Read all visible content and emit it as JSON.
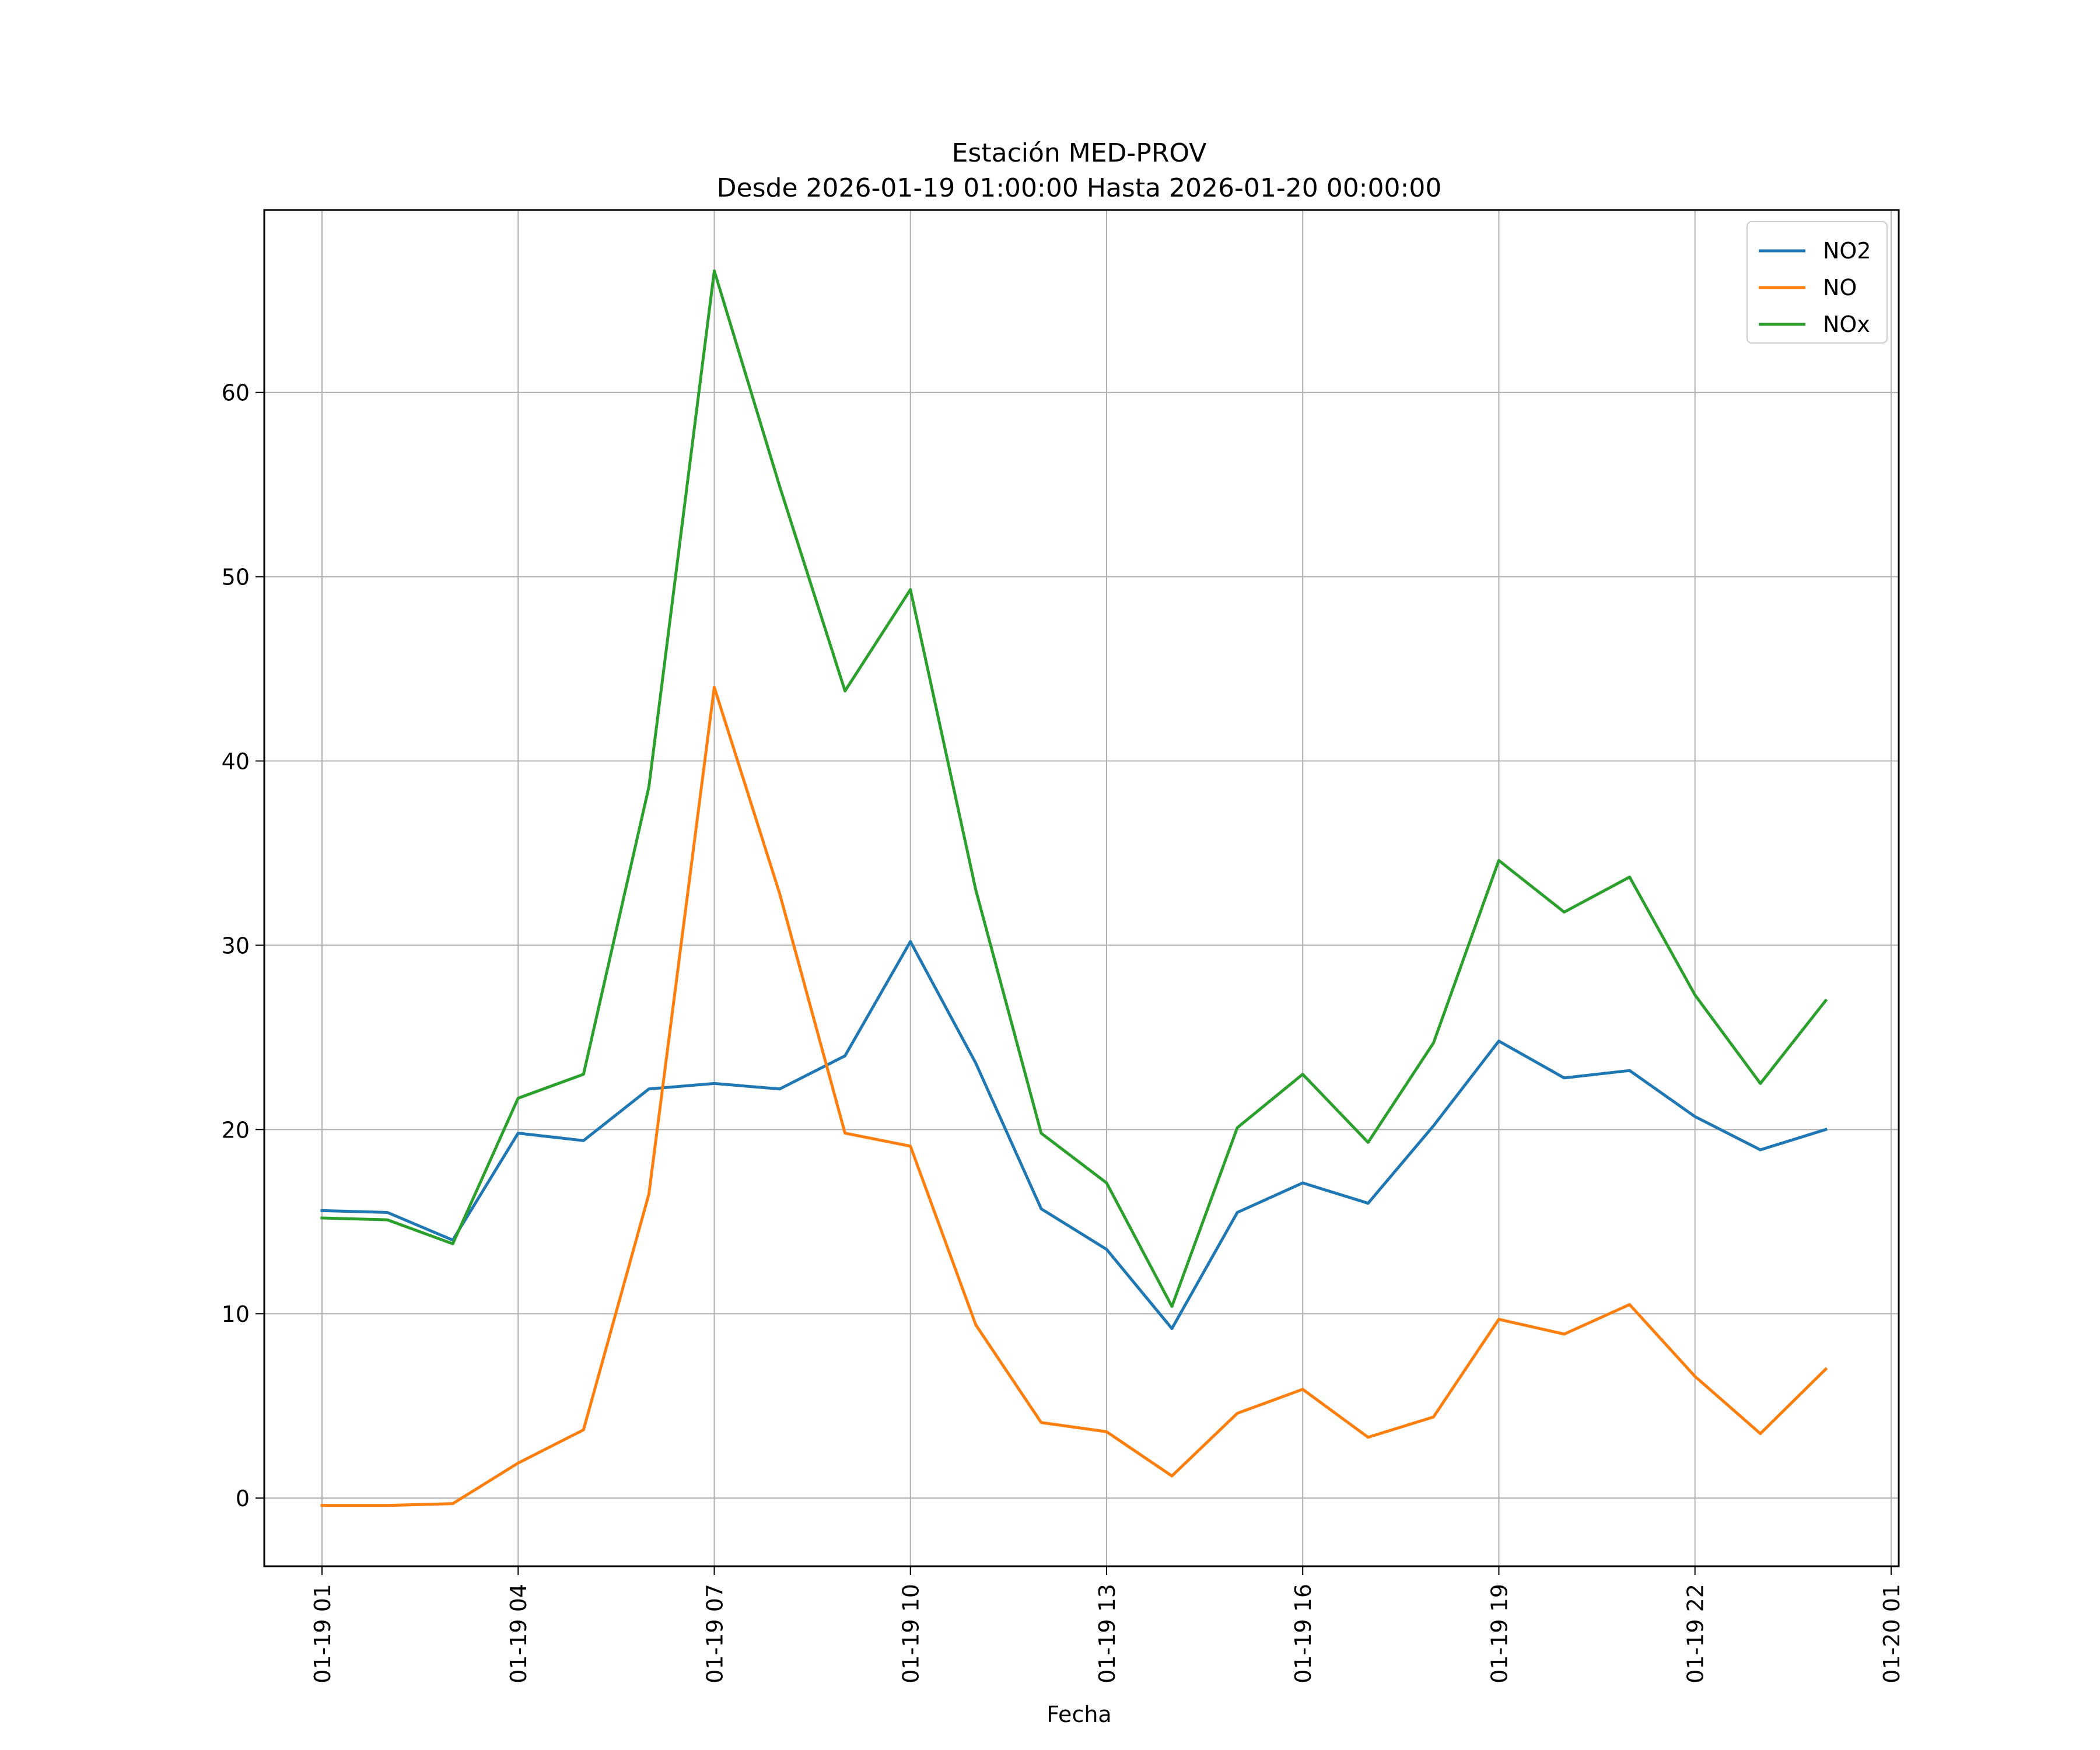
{
  "chart_data": {
    "type": "line",
    "title": "Estación MED-PROV",
    "subtitle": "Desde 2026-01-19 01:00:00 Hasta 2026-01-20 00:00:00",
    "xlabel": "Fecha",
    "ylabel": "",
    "x": [
      "2026-01-19 01:00",
      "2026-01-19 02:00",
      "2026-01-19 03:00",
      "2026-01-19 04:00",
      "2026-01-19 05:00",
      "2026-01-19 06:00",
      "2026-01-19 07:00",
      "2026-01-19 08:00",
      "2026-01-19 09:00",
      "2026-01-19 10:00",
      "2026-01-19 11:00",
      "2026-01-19 12:00",
      "2026-01-19 13:00",
      "2026-01-19 14:00",
      "2026-01-19 15:00",
      "2026-01-19 16:00",
      "2026-01-19 17:00",
      "2026-01-19 18:00",
      "2026-01-19 19:00",
      "2026-01-19 20:00",
      "2026-01-19 21:00",
      "2026-01-19 22:00",
      "2026-01-19 23:00",
      "2026-01-20 00:00"
    ],
    "xlim": [
      "2026-01-19 00:07",
      "2026-01-20 01:07"
    ],
    "ylim": [
      -3.7,
      69.9
    ],
    "x_ticks": [
      "2026-01-19 01:00",
      "2026-01-19 04:00",
      "2026-01-19 07:00",
      "2026-01-19 10:00",
      "2026-01-19 13:00",
      "2026-01-19 16:00",
      "2026-01-19 19:00",
      "2026-01-19 22:00",
      "2026-01-20 01:00"
    ],
    "x_tick_labels": [
      "01-19 01",
      "01-19 04",
      "01-19 07",
      "01-19 10",
      "01-19 13",
      "01-19 16",
      "01-19 19",
      "01-19 22",
      "01-20 01"
    ],
    "y_ticks": [
      0,
      10,
      20,
      30,
      40,
      50,
      60
    ],
    "y_tick_labels": [
      "0",
      "10",
      "20",
      "30",
      "40",
      "50",
      "60"
    ],
    "grid": true,
    "legend_position": "top-right",
    "series": [
      {
        "name": "NO2",
        "color": "#1f77b4",
        "values": [
          15.6,
          15.5,
          14.0,
          19.8,
          19.4,
          22.2,
          22.5,
          22.2,
          24.0,
          30.2,
          23.6,
          15.7,
          13.5,
          9.2,
          15.5,
          17.1,
          16.0,
          20.2,
          24.8,
          22.8,
          23.2,
          20.7,
          18.9,
          20.0
        ]
      },
      {
        "name": "NO",
        "color": "#ff7f0e",
        "values": [
          -0.4,
          -0.4,
          -0.3,
          1.9,
          3.7,
          16.5,
          44.0,
          32.8,
          19.8,
          19.1,
          9.4,
          4.1,
          3.6,
          1.2,
          4.6,
          5.9,
          3.3,
          4.4,
          9.7,
          8.9,
          10.5,
          6.6,
          3.5,
          7.0
        ]
      },
      {
        "name": "NOx",
        "color": "#2ca02c",
        "values": [
          15.2,
          15.1,
          13.8,
          21.7,
          23.0,
          38.6,
          66.6,
          54.9,
          43.8,
          49.3,
          33.0,
          19.8,
          17.1,
          10.4,
          20.1,
          23.0,
          19.3,
          24.7,
          34.6,
          31.8,
          33.7,
          27.3,
          22.5,
          27.0
        ]
      }
    ]
  }
}
